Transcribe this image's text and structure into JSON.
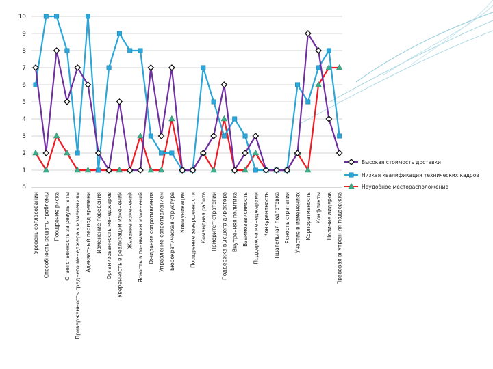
{
  "chart_data": {
    "type": "line",
    "title": "",
    "xlabel": "",
    "ylabel": "",
    "ylim": [
      0,
      10
    ],
    "yticks": [
      0,
      1,
      2,
      3,
      4,
      5,
      6,
      7,
      8,
      9,
      10
    ],
    "grid": true,
    "legend": "right",
    "categories": [
      "Уровень согласований",
      "Способность решать проблемы",
      "Поощрение риска",
      "Ответственность за результаты",
      "Приверженность среднего менеджера к изменениям",
      "Адекватный период времени",
      "Изменение поведения",
      "Организованность менеджеров",
      "Уверенность в реализации изменений",
      "Желание изменений",
      "Ясность в понимании изменений",
      "Ожидание сопротивления",
      "Управление сопротивлением",
      "Бюрократическая структура",
      "Коммуникация",
      "Поощрение завершенности",
      "Командная работа",
      "Приоритет стратегии",
      "Поддержка высшего директора",
      "Внутренняя политика",
      "Взаимозависимость",
      "Поддержка менеджерами",
      "Конкурентность",
      "Тщательная подготовка",
      "Ясность стратегии",
      "Участие в изменениях",
      "Корпоративность",
      "Конфликты",
      "Наличие лидеров",
      "Правовая внутренняя поддержка"
    ],
    "series": [
      {
        "name": "Высокая стоимость доставки",
        "color": "#7030a0",
        "marker": "diamond",
        "values": [
          7,
          2,
          8,
          5,
          7,
          6,
          2,
          1,
          5,
          1,
          1,
          7,
          3,
          7,
          1,
          1,
          2,
          3,
          6,
          1,
          2,
          3,
          1,
          1,
          1,
          2,
          9,
          8,
          4,
          2
        ]
      },
      {
        "name": "Низкая квалификация технических кадров",
        "color": "#2ca6d8",
        "marker": "square",
        "values": [
          6,
          10,
          10,
          8,
          2,
          10,
          1,
          7,
          9,
          8,
          8,
          3,
          2,
          2,
          1,
          1,
          7,
          5,
          3,
          4,
          3,
          1,
          1,
          1,
          1,
          6,
          5,
          7,
          8,
          3
        ]
      },
      {
        "name": "Неудобное месторасположение",
        "color": "#ee1c25",
        "marker": "triangle",
        "values": [
          2,
          1,
          3,
          2,
          1,
          1,
          1,
          1,
          1,
          1,
          3,
          1,
          1,
          4,
          1,
          1,
          2,
          1,
          4,
          1,
          1,
          2,
          1,
          1,
          1,
          2,
          1,
          6,
          7,
          7
        ]
      }
    ]
  }
}
